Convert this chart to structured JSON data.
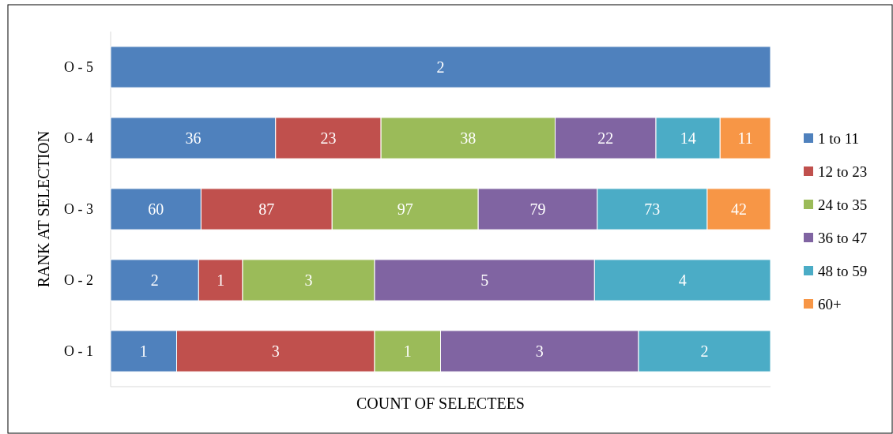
{
  "chart_data": [
    {
      "type": "bar",
      "orientation": "horizontal",
      "stacked": true,
      "data_labels": true,
      "categories": [
        "O - 5"
      ],
      "series": [
        {
          "color": "#4f81bd",
          "values": [
            2
          ]
        }
      ]
    },
    {
      "type": "bar",
      "orientation": "horizontal",
      "stacked": true,
      "data_labels": true,
      "categories": [
        "O - 4"
      ],
      "series": [
        {
          "color": "#4f81bd",
          "values": [
            36
          ]
        },
        {
          "color": "#c0504d",
          "values": [
            23
          ]
        },
        {
          "color": "#9bbb59",
          "values": [
            38
          ]
        },
        {
          "color": "#8064a2",
          "values": [
            22
          ]
        },
        {
          "color": "#4bacc6",
          "values": [
            14
          ]
        },
        {
          "color": "#f79646",
          "values": [
            11
          ]
        }
      ]
    },
    {
      "type": "bar",
      "orientation": "horizontal",
      "stacked": true,
      "data_labels": true,
      "ylabel": "RANK AT SELECTION",
      "legend": "right",
      "categories": [
        "O - 3"
      ],
      "series": [
        {
          "name": "1 to 11",
          "color": "#4f81bd",
          "values": [
            60
          ]
        },
        {
          "name": "12 to 23",
          "color": "#c0504d",
          "values": [
            87
          ]
        },
        {
          "name": "24 to 35",
          "color": "#9bbb59",
          "values": [
            97
          ]
        },
        {
          "name": "36 to 47",
          "color": "#8064a2",
          "values": [
            79
          ]
        },
        {
          "name": "48 to 59",
          "color": "#4bacc6",
          "values": [
            73
          ]
        },
        {
          "name": "60+",
          "color": "#f79646",
          "values": [
            42
          ]
        }
      ]
    },
    {
      "type": "bar",
      "orientation": "horizontal",
      "stacked": true,
      "data_labels": true,
      "categories": [
        "O - 2"
      ],
      "series": [
        {
          "color": "#4f81bd",
          "values": [
            2
          ]
        },
        {
          "color": "#c0504d",
          "values": [
            1
          ]
        },
        {
          "color": "#9bbb59",
          "values": [
            3
          ]
        },
        {
          "color": "#8064a2",
          "values": [
            5
          ]
        },
        {
          "color": "#4bacc6",
          "values": [
            4
          ]
        }
      ]
    },
    {
      "type": "bar",
      "orientation": "horizontal",
      "stacked": true,
      "data_labels": true,
      "xlabel": "COUNT OF SELECTEES",
      "categories": [
        "O - 1"
      ],
      "series": [
        {
          "color": "#4f81bd",
          "values": [
            1
          ]
        },
        {
          "color": "#c0504d",
          "values": [
            3
          ]
        },
        {
          "color": "#9bbb59",
          "values": [
            1
          ]
        },
        {
          "color": "#8064a2",
          "values": [
            3
          ]
        },
        {
          "color": "#4bacc6",
          "values": [
            2
          ]
        }
      ]
    }
  ]
}
